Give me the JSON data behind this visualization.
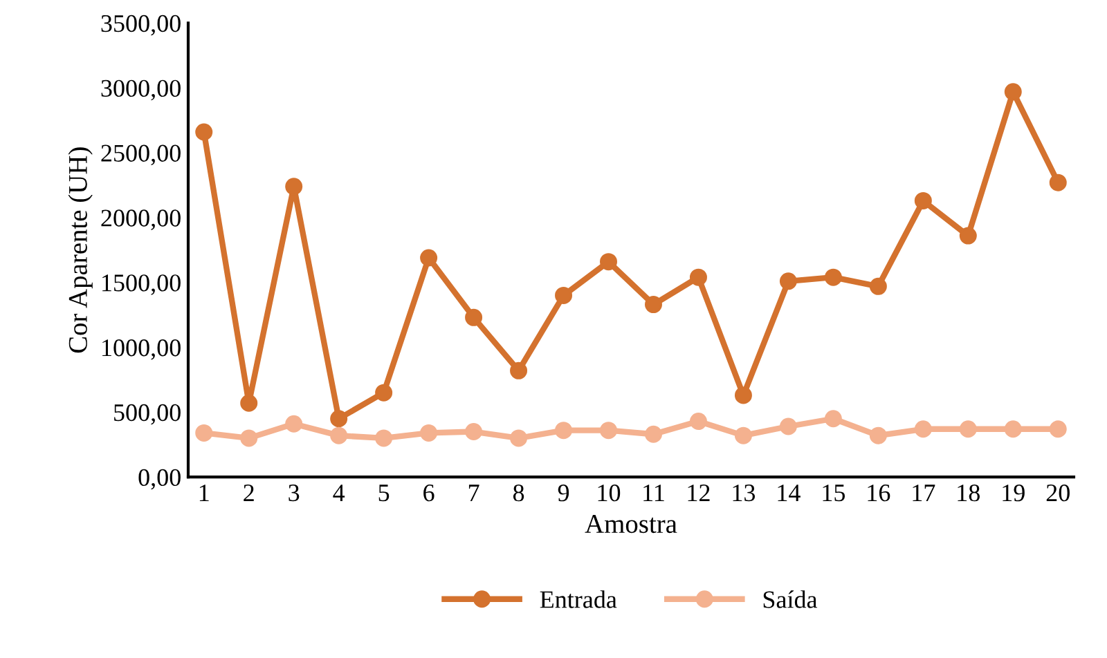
{
  "chart_data": {
    "type": "line",
    "xlabel": "Amostra",
    "ylabel": "Cor Aparente (UH)",
    "categories": [
      "1",
      "2",
      "3",
      "4",
      "5",
      "6",
      "7",
      "8",
      "9",
      "10",
      "11",
      "12",
      "13",
      "14",
      "15",
      "16",
      "17",
      "18",
      "19",
      "20"
    ],
    "series": [
      {
        "name": "Entrada",
        "color": "#d4722e",
        "values": [
          2660,
          570,
          2240,
          450,
          650,
          1690,
          1230,
          820,
          1400,
          1660,
          1330,
          1540,
          630,
          1510,
          1540,
          1470,
          2130,
          1860,
          2970,
          2270
        ]
      },
      {
        "name": "Saída",
        "color": "#f4b18f",
        "values": [
          340,
          300,
          410,
          320,
          300,
          340,
          350,
          300,
          360,
          360,
          330,
          430,
          320,
          390,
          450,
          320,
          370,
          370,
          370,
          370
        ]
      }
    ],
    "ylim": [
      0,
      3500
    ],
    "yticks": [
      {
        "value": 0,
        "label": "0,00"
      },
      {
        "value": 500,
        "label": "500,00"
      },
      {
        "value": 1000,
        "label": "1000,00"
      },
      {
        "value": 1500,
        "label": "1500,00"
      },
      {
        "value": 2000,
        "label": "2000,00"
      },
      {
        "value": 2500,
        "label": "2500,00"
      },
      {
        "value": 3000,
        "label": "3000,00"
      },
      {
        "value": 3500,
        "label": "3500,00"
      }
    ],
    "marker": "circle",
    "line_style": "solid",
    "grid": false,
    "legend": "bottom"
  }
}
